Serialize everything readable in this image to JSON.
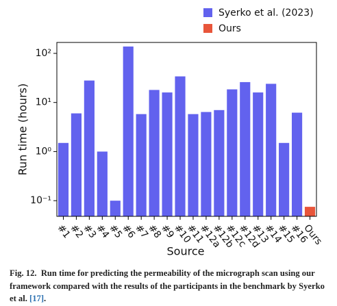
{
  "chart_data": {
    "type": "bar",
    "log_y": true,
    "xlabel": "Source",
    "ylabel": "Run time (hours)",
    "categories": [
      "#1",
      "#2",
      "#3",
      "#4",
      "#5",
      "#6",
      "#7",
      "#8",
      "#9",
      "#10",
      "#11",
      "#12a",
      "#12b",
      "#12c",
      "#12d",
      "#13",
      "#14",
      "#15",
      "#16",
      "Ours"
    ],
    "series": [
      {
        "name": "Syerko et al. (2023)",
        "color": "#6262ee",
        "values": [
          1.5,
          6,
          28,
          1.0,
          0.1,
          138,
          5.8,
          18,
          16,
          34,
          5.8,
          6.4,
          7,
          18.5,
          26,
          16,
          24,
          1.5,
          6.2,
          null
        ]
      },
      {
        "name": "Ours",
        "color": "#e8553a",
        "values": [
          null,
          null,
          null,
          null,
          null,
          null,
          null,
          null,
          null,
          null,
          null,
          null,
          null,
          null,
          null,
          null,
          null,
          null,
          null,
          0.075
        ]
      }
    ],
    "ylim": [
      0.048,
      167
    ],
    "yticks": [
      {
        "value": 0.1,
        "label": "10⁻¹"
      },
      {
        "value": 1,
        "label": "10⁰"
      },
      {
        "value": 10,
        "label": "10¹"
      },
      {
        "value": 100,
        "label": "10²"
      }
    ],
    "legend": "upper-right"
  },
  "caption": {
    "label": "Fig. 12.",
    "text": "Run time for predicting the permeability of the micrograph scan using our framework compared with the results of the participants in the benchmark by Syerko et al.",
    "ref": "[17]",
    "suffix": "."
  }
}
